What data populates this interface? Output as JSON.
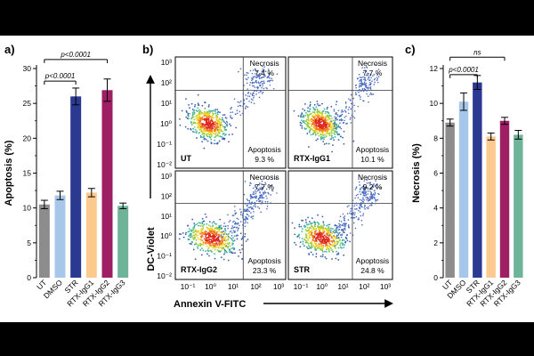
{
  "chart_data": [
    {
      "panel": "a)",
      "type": "bar",
      "ylabel": "Apoptosis (%)",
      "ylim": [
        0,
        30
      ],
      "yticks": [
        0,
        5,
        10,
        15,
        20,
        25,
        30
      ],
      "categories": [
        "UT",
        "DMSO",
        "STR",
        "RTX-IgG1",
        "RTX-IgG2",
        "RTX-IgG3"
      ],
      "values": [
        10.5,
        11.8,
        26.0,
        12.2,
        26.9,
        10.3
      ],
      "errors": [
        0.6,
        0.6,
        1.2,
        0.6,
        1.6,
        0.4
      ],
      "colors": [
        "#8c8c8c",
        "#a7c7ea",
        "#2b3990",
        "#fcc98e",
        "#9e1f63",
        "#6fb49a"
      ],
      "brackets": [
        {
          "from": 0,
          "to": 2,
          "label": "p<0.0001",
          "y": 28.2
        },
        {
          "from": 0,
          "to": 4,
          "label": "p<0.0001",
          "y": 31.3
        }
      ]
    },
    {
      "panel": "b)",
      "type": "scatter",
      "xlabel": "Annexin V-FITC",
      "ylabel": "DC-Violet",
      "x_tick_labels": [
        "10⁻¹",
        "10⁰",
        "10¹",
        "10²",
        "10³"
      ],
      "y_tick_labels": [
        "10³",
        "10²",
        "10¹",
        "10⁰",
        "10⁻¹",
        "10⁻²"
      ],
      "quadrant_labels": {
        "necrosis": "Necrosis",
        "apoptosis": "Apoptosis"
      },
      "plots": [
        {
          "label": "UT",
          "necrosis": "7.4 %",
          "apoptosis": "9.3 %"
        },
        {
          "label": "RTX-IgG1",
          "necrosis": "7.7 %",
          "apoptosis": "10.1 %"
        },
        {
          "label": "RTX-IgG2",
          "necrosis": "7.7 %",
          "apoptosis": "23.3 %"
        },
        {
          "label": "STR",
          "necrosis": "9.2 %",
          "apoptosis": "24.8 %"
        }
      ]
    },
    {
      "panel": "c)",
      "type": "bar",
      "ylabel": "Necrosis (%)",
      "ylim": [
        0,
        12
      ],
      "yticks": [
        0,
        2,
        4,
        6,
        8,
        10,
        12
      ],
      "categories": [
        "UT",
        "DMSO",
        "STR",
        "RTX-IgG1",
        "RTX-IgG2",
        "RTX-IgG3"
      ],
      "values": [
        8.9,
        10.1,
        11.2,
        8.1,
        9.0,
        8.2
      ],
      "errors": [
        0.2,
        0.5,
        0.4,
        0.2,
        0.2,
        0.25
      ],
      "colors": [
        "#8c8c8c",
        "#a7c7ea",
        "#2b3990",
        "#fcc98e",
        "#9e1f63",
        "#6fb49a"
      ],
      "brackets": [
        {
          "from": 0,
          "to": 2,
          "label": "p<0.0001",
          "y": 11.65
        },
        {
          "from": 0,
          "to": 4,
          "label": "ns",
          "y": 12.65
        }
      ]
    }
  ]
}
